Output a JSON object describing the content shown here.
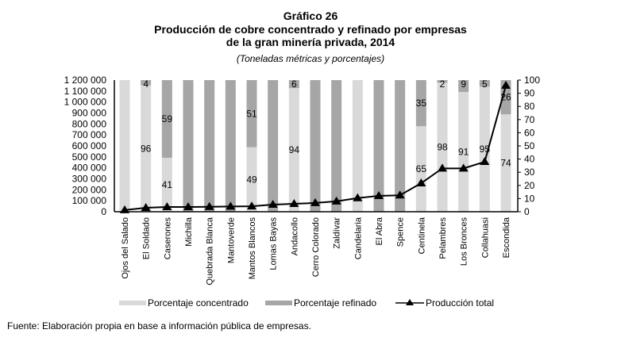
{
  "chart_data": {
    "type": "bar",
    "title": "Gráfico 26",
    "title_lines": [
      "Gráfico 26",
      "Producción de cobre concentrado y refinado por empresas",
      "de la gran minería privada, 2014"
    ],
    "subtitle": "(Toneladas métricas y porcentajes)",
    "categories": [
      "Ojos del Salado",
      "El Soldado",
      "Caserones",
      "Michilla",
      "Quebrada Blanca",
      "Mantoverde",
      "Mantos Blancos",
      "Lomas Bayas",
      "Andacollo",
      "Cerro Colorado",
      "Zaldívar",
      "Candelaria",
      "El Abra",
      "Spence",
      "Centinela",
      "Pelambres",
      "Los Bronces",
      "Collahuasi",
      "Escondida"
    ],
    "series": [
      {
        "name": "Porcentaje concentrado",
        "type": "stacked-bar",
        "axis": "right",
        "color": "#d9d9d9",
        "values": [
          100,
          96,
          41,
          0,
          0,
          0,
          49,
          0,
          94,
          0,
          0,
          100,
          0,
          0,
          65,
          98,
          91,
          95,
          74
        ],
        "labels": [
          "",
          "96",
          "41",
          "",
          "",
          "",
          "49",
          "",
          "94",
          "",
          "",
          "",
          "",
          "",
          "65",
          "98",
          "91",
          "95",
          "74"
        ]
      },
      {
        "name": "Porcentaje refinado",
        "type": "stacked-bar",
        "axis": "right",
        "color": "#a6a6a6",
        "values": [
          0,
          4,
          59,
          100,
          100,
          100,
          51,
          100,
          6,
          100,
          100,
          0,
          100,
          100,
          35,
          2,
          9,
          5,
          26
        ],
        "labels": [
          "",
          "4",
          "59",
          "",
          "",
          "",
          "51",
          "",
          "6",
          "",
          "",
          "",
          "",
          "",
          "35",
          "2",
          "9",
          "5",
          "26"
        ]
      },
      {
        "name": "Producción total",
        "type": "line",
        "axis": "left",
        "color": "#000000",
        "values": [
          15000,
          36000,
          43000,
          43000,
          45000,
          48000,
          50000,
          65000,
          72000,
          80000,
          95000,
          125000,
          145000,
          150000,
          260000,
          395000,
          395000,
          455000,
          1150000
        ]
      }
    ],
    "left_axis": {
      "ylim": [
        0,
        1200000
      ],
      "ticks": [
        "0",
        "100 000",
        "200 000",
        "300 000",
        "400 000",
        "500 000",
        "600 000",
        "700 000",
        "800 000",
        "900 000",
        "1 000 000",
        "1 100 000",
        "1 200 000"
      ]
    },
    "right_axis": {
      "ylim": [
        0,
        100
      ],
      "ticks": [
        "0",
        "10",
        "20",
        "30",
        "40",
        "50",
        "60",
        "70",
        "80",
        "90",
        "100"
      ]
    },
    "legend": {
      "placement": "bottom",
      "items": [
        "Porcentaje concentrado",
        "Porcentaje refinado",
        "Producción total"
      ]
    },
    "grid": false
  },
  "source": "Fuente: Elaboración propia en base a información pública de empresas."
}
